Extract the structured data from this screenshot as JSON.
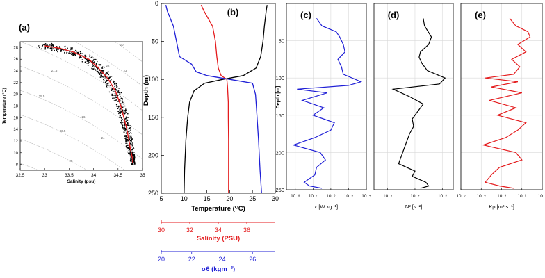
{
  "panels": {
    "a": {
      "label": "(a)"
    },
    "b": {
      "label": "(b)"
    },
    "c": {
      "label": "(c)"
    },
    "d": {
      "label": "(d)"
    },
    "e": {
      "label": "(e)"
    }
  },
  "colors": {
    "black": "#000000",
    "red": "#e41a1c",
    "blue": "#1f1fd6",
    "grid": "#d9d9d9",
    "contour": "#b8b8b8"
  },
  "chart_data": [
    {
      "id": "a",
      "type": "scatter",
      "xlabel": "Salinity (psu)",
      "ylabel": "Temperature (°C)",
      "xlim": [
        32.5,
        35
      ],
      "ylim": [
        7,
        29
      ],
      "xticks": [
        "32.5",
        "33",
        "33.5",
        "34",
        "34.5",
        "35"
      ],
      "yticks": [
        "8",
        "10",
        "12",
        "14",
        "16",
        "18",
        "20",
        "22",
        "24",
        "26",
        "28"
      ],
      "contour_labels": [
        "20",
        "21.5",
        "22",
        "23",
        "23.5",
        "24",
        "25",
        "25.5",
        "26",
        "26.5"
      ],
      "mean_curve": {
        "x": [
          33.0,
          33.3,
          33.6,
          33.9,
          34.1,
          34.3,
          34.45,
          34.55,
          34.62,
          34.68,
          34.72,
          34.75,
          34.78,
          34.8,
          34.8
        ],
        "y": [
          28.3,
          27.9,
          27.2,
          26.0,
          24.5,
          22.6,
          20.5,
          18.2,
          16.0,
          14.0,
          12.2,
          10.8,
          9.6,
          8.9,
          8.3
        ]
      }
    },
    {
      "id": "b",
      "type": "line",
      "ylabel": "Depth (m)",
      "ylim": [
        0,
        250
      ],
      "yticks": [
        "0",
        "50",
        "100",
        "150",
        "200",
        "250"
      ],
      "axes": [
        {
          "label": "Temperature (ᴼC)",
          "color": "#000000",
          "range": [
            5,
            30
          ],
          "ticks": [
            "5",
            "10",
            "15",
            "20",
            "25",
            "30"
          ]
        },
        {
          "label": "Salinity (PSU)",
          "color": "#e41a1c",
          "range": [
            30,
            38
          ],
          "ticks": [
            "30",
            "32",
            "34",
            "36"
          ]
        },
        {
          "label": "σθ (kgm⁻³)",
          "color": "#1f1fd6",
          "range": [
            20,
            27.5
          ],
          "ticks": [
            "20",
            "22",
            "24",
            "26"
          ]
        }
      ],
      "series": [
        {
          "name": "Temperature",
          "axis": 0,
          "color": "#000000",
          "depth": [
            2,
            10,
            30,
            50,
            70,
            85,
            95,
            100,
            105,
            115,
            130,
            150,
            180,
            220,
            250
          ],
          "values": [
            28.2,
            28.0,
            27.6,
            27.3,
            26.8,
            25.8,
            23.0,
            18.5,
            14.5,
            12.2,
            11.2,
            10.8,
            10.4,
            10.1,
            10.0
          ]
        },
        {
          "name": "Salinity",
          "axis": 1,
          "color": "#e41a1c",
          "depth": [
            2,
            10,
            30,
            50,
            70,
            85,
            95,
            100,
            110,
            130,
            150,
            180,
            220,
            250
          ],
          "values": [
            32.8,
            33.0,
            33.6,
            33.8,
            33.9,
            34.0,
            34.2,
            34.6,
            34.65,
            34.7,
            34.7,
            34.72,
            34.72,
            34.72
          ]
        },
        {
          "name": "Sigma-theta",
          "axis": 2,
          "color": "#1f1fd6",
          "depth": [
            2,
            10,
            30,
            50,
            70,
            80,
            90,
            95,
            100,
            105,
            120,
            150,
            180,
            220,
            250
          ],
          "values": [
            20.3,
            20.4,
            20.8,
            21.0,
            21.2,
            22.0,
            22.3,
            23.0,
            24.5,
            26.0,
            26.2,
            26.3,
            26.4,
            26.5,
            26.6
          ]
        }
      ]
    },
    {
      "id": "c",
      "type": "line",
      "xscale": "log",
      "xlabel": "ε [W kg⁻¹]",
      "ylabel": "Depth [m]",
      "xlim_exp": [
        -8.5,
        -4
      ],
      "ylim": [
        0,
        250
      ],
      "xticks": [
        "10⁻⁸",
        "10⁻⁷",
        "10⁻⁶",
        "10⁻⁵",
        "10⁻⁴"
      ],
      "yticks": [
        "50",
        "100",
        "150",
        "200",
        "250"
      ],
      "series": [
        {
          "name": "epsilon",
          "color": "#1f1fd6",
          "depth": [
            20,
            30,
            38,
            45,
            55,
            65,
            75,
            85,
            95,
            105,
            110,
            115,
            120,
            130,
            140,
            150,
            160,
            170,
            180,
            190,
            200,
            210,
            220,
            230,
            240,
            245,
            248
          ],
          "log10": [
            -6.8,
            -6.5,
            -5.7,
            -5.5,
            -5.3,
            -5.2,
            -5.6,
            -5.4,
            -5.3,
            -4.3,
            -5.0,
            -7.9,
            -6.2,
            -7.6,
            -6.4,
            -7.0,
            -5.8,
            -6.0,
            -6.9,
            -8.1,
            -6.6,
            -6.3,
            -6.8,
            -6.9,
            -7.5,
            -7.2,
            -6.5
          ]
        }
      ]
    },
    {
      "id": "d",
      "type": "line",
      "xscale": "log",
      "xlabel": "N² [s⁻²]",
      "xlim_exp": [
        -5.5,
        -2.6
      ],
      "ylim": [
        0,
        250
      ],
      "xticks": [
        "10⁻⁵",
        "10⁻⁴",
        "10⁻³"
      ],
      "yticks": [
        "50",
        "100",
        "150",
        "200",
        "250"
      ],
      "series": [
        {
          "name": "N2",
          "color": "#000000",
          "depth": [
            20,
            30,
            45,
            55,
            65,
            72,
            80,
            90,
            100,
            108,
            115,
            125,
            135,
            145,
            155,
            165,
            175,
            185,
            195,
            205,
            215,
            225,
            232,
            240,
            245,
            248
          ],
          "log10": [
            -3.7,
            -3.65,
            -3.4,
            -3.5,
            -3.8,
            -3.85,
            -3.75,
            -3.55,
            -2.9,
            -3.1,
            -4.8,
            -4.2,
            -3.7,
            -3.9,
            -4.1,
            -4.05,
            -4.2,
            -4.3,
            -4.4,
            -4.5,
            -4.6,
            -4.0,
            -4.1,
            -3.6,
            -3.5,
            -3.8
          ]
        }
      ]
    },
    {
      "id": "e",
      "type": "line",
      "xscale": "log",
      "xlabel": "Kρ [m² s⁻¹]",
      "xlim_exp": [
        -5,
        -1
      ],
      "ylim": [
        0,
        250
      ],
      "xticks": [
        "10⁻⁵",
        "10⁻⁴",
        "10⁻³",
        "10⁻²",
        "10⁻¹"
      ],
      "yticks": [
        "50",
        "100",
        "150",
        "200",
        "250"
      ],
      "series": [
        {
          "name": "Krho",
          "color": "#e41a1c",
          "depth": [
            20,
            30,
            38,
            45,
            55,
            65,
            75,
            85,
            95,
            100,
            105,
            112,
            120,
            130,
            140,
            150,
            160,
            170,
            180,
            190,
            200,
            210,
            220,
            230,
            240,
            245,
            248
          ],
          "log10": [
            -2.6,
            -2.3,
            -1.7,
            -1.6,
            -2.2,
            -1.8,
            -2.5,
            -2.1,
            -2.4,
            -3.8,
            -2.2,
            -3.5,
            -2.0,
            -3.6,
            -2.3,
            -3.2,
            -1.8,
            -2.2,
            -2.8,
            -3.9,
            -2.3,
            -2.0,
            -3.1,
            -3.5,
            -3.8,
            -3.1,
            -2.4
          ]
        }
      ]
    }
  ]
}
